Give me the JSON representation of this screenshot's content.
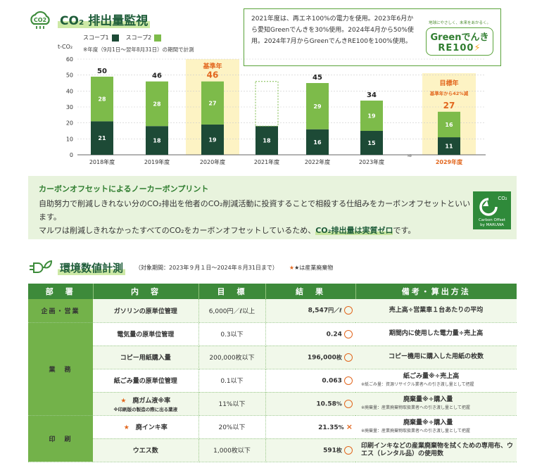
{
  "co2": {
    "title": "CO₂ 排出量監視",
    "info_text": "2021年度は、再エネ100%の電力を使用。2023年6月から愛知Greenでんきを30%使用。2024年4月から50%使用。2024年7月からGreenでんきRE100を100%使用。",
    "green_logo": {
      "tagline": "地球にやさしく、未来をあかるく。",
      "line1": "Greenでんき",
      "line2": "RE100"
    },
    "legend": {
      "scope1": "スコープ1",
      "scope2": "スコープ2"
    },
    "period_note": "※年度（9月1日～翌年8月31日）の期間で計測",
    "unit": "t-CO₂",
    "base_year_label": "基準年",
    "target_label": "目標年",
    "target_sub": "基準年から42%減",
    "colors": {
      "scope1": "#1d4a36",
      "scope2": "#7dbb4a",
      "highlight": "#fdf3c4",
      "accent": "#e2671e"
    }
  },
  "chart_data": {
    "type": "bar",
    "stacked": true,
    "categories": [
      "2018年度",
      "2019年度",
      "2020年度",
      "2021年度",
      "2022年度",
      "2023年度",
      "2029年度"
    ],
    "series": [
      {
        "name": "スコープ1",
        "values": [
          21,
          18,
          19,
          18,
          16,
          15,
          11
        ]
      },
      {
        "name": "スコープ2",
        "values": [
          28,
          28,
          27,
          0,
          29,
          19,
          16
        ]
      }
    ],
    "totals": [
      "50",
      "46",
      "46",
      "",
      "45",
      "34",
      "27"
    ],
    "ylabel": "t-CO₂",
    "ylim": [
      0,
      60
    ],
    "yticks": [
      0,
      10,
      20,
      30,
      40,
      50,
      60
    ],
    "grid": true,
    "highlight": {
      "base_index": 2,
      "target_index": 6
    }
  },
  "offset": {
    "title": "カーボンオフセットによるノーカーボンプリント",
    "line1": "自助努力で削減しきれない分のCO₂排出を他者のCO₂削減活動に投資することで相殺する仕組みをカーボンオフセットといいます。",
    "line2_pre": "マルワは削減しきれなかったすべてのCO₂をカーボンオフセットしているため、",
    "line2_strong": "CO₂排出量は実質ゼロ",
    "line2_post": "です。",
    "logo_co2": "CO₂",
    "logo_l1": "Carbon Offset",
    "logo_l2": "by MARUWA"
  },
  "env": {
    "title": "環境数値計測",
    "period": "（対象期間：2023年９月１日～2024年８月31日まで）",
    "star_note": "★は産業廃棄物",
    "headers": [
      "部　署",
      "内　容",
      "目　標",
      "結　果",
      "備考・算出方法"
    ],
    "depts": {
      "sales": "企画・営業",
      "ops": "業　務",
      "print": "印　刷"
    },
    "rows": [
      {
        "item": "ガソリンの原単位管理",
        "goal": "6,000円／ℓ以上",
        "result": "8,547",
        "unit": "円／ℓ",
        "mark": "○",
        "note": "売上高÷営業車１台あたりの平均"
      },
      {
        "item": "電気量の原単位管理",
        "goal": "0.3以下",
        "result": "0.24",
        "unit": "",
        "mark": "○",
        "note": "期間内に使用した電力量÷売上高"
      },
      {
        "item": "コピー用紙購入量",
        "goal": "200,000枚以下",
        "result": "196,000",
        "unit": "枚",
        "mark": "○",
        "note": "コピー機用に購入した用紙の枚数"
      },
      {
        "item": "紙ごみ量の原単位管理",
        "goal": "0.1以下",
        "result": "0.063",
        "unit": "",
        "mark": "○",
        "note": "紙ごみ量※÷売上高",
        "note_small": "※紙ごみ量：資源リサイクル業者への引き渡し量として把握"
      },
      {
        "item": "廃ガム液※率",
        "item_sub": "※印刷版の製造の際に出る薬液",
        "goal": "11%以下",
        "result": "10.58",
        "unit": "%",
        "mark": "○",
        "note": "廃棄量※÷購入量",
        "note_small": "※廃棄量：産業廃棄物取扱業者への引き渡し量として把握"
      },
      {
        "item": "廃インキ率",
        "goal": "20%以下",
        "result": "21.35",
        "unit": "%",
        "mark": "×",
        "note": "廃棄量※÷購入量",
        "note_small": "※廃棄量：産業廃棄物取扱業者への引き渡し量として把握"
      },
      {
        "item": "ウエス数",
        "goal": "1,000枚以下",
        "result": "591",
        "unit": "枚",
        "mark": "○",
        "note": "印刷インキなどの産業廃棄物を拭くための専用布、ウエス（レンタル品）の使用数"
      }
    ],
    "star": "★"
  }
}
